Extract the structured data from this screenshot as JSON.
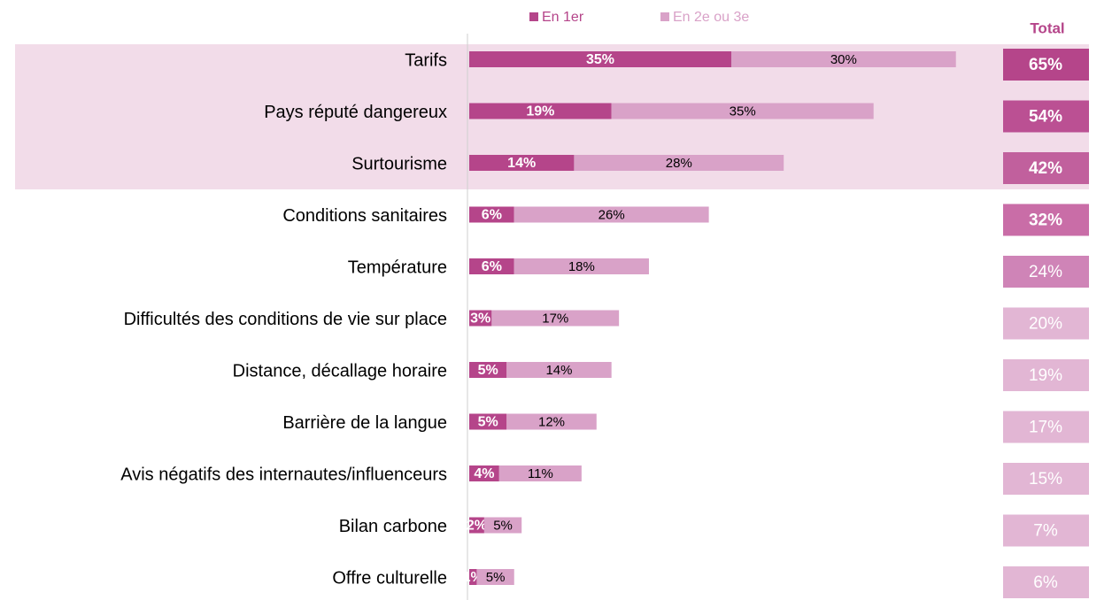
{
  "chart_data": {
    "type": "stacked-bar-horizontal",
    "categories": [
      "Tarifs",
      "Pays réputé dangereux",
      "Surtourisme",
      "Conditions sanitaires",
      "Température",
      "Difficultés des conditions de vie sur place",
      "Distance, décallage horaire",
      "Barrière de la langue",
      "Avis négatifs des internautes/influenceurs",
      "Bilan carbone",
      "Offre culturelle"
    ],
    "series": [
      {
        "name": "En 1er",
        "color": "#b5458a",
        "values": [
          35,
          19,
          14,
          6,
          6,
          3,
          5,
          5,
          4,
          2,
          1
        ],
        "value_labels": [
          "35%",
          "19%",
          "14%",
          "6%",
          "6%",
          "3%",
          "5%",
          "5%",
          "4%",
          "2%",
          "1%"
        ]
      },
      {
        "name": "En 2e ou 3e",
        "color": "#d9a2c8",
        "values": [
          30,
          35,
          28,
          26,
          18,
          17,
          14,
          12,
          11,
          5,
          5
        ],
        "value_labels": [
          "30%",
          "35%",
          "28%",
          "26%",
          "18%",
          "17%",
          "14%",
          "12%",
          "11%",
          "5%",
          "5%"
        ]
      }
    ],
    "total_title": "Total",
    "totals": {
      "values": [
        65,
        54,
        42,
        32,
        24,
        20,
        19,
        17,
        15,
        7,
        6
      ],
      "value_labels": [
        "65%",
        "54%",
        "42%",
        "32%",
        "24%",
        "20%",
        "19%",
        "17%",
        "15%",
        "7%",
        "6%"
      ],
      "colors": [
        "#b5458a",
        "#bb5093",
        "#c1609d",
        "#c96da7",
        "#cf84b7",
        "#e2b6d4",
        "#e2b6d4",
        "#e2b6d4",
        "#e2b6d4",
        "#e2b6d4",
        "#e2b6d4"
      ]
    }
  }
}
